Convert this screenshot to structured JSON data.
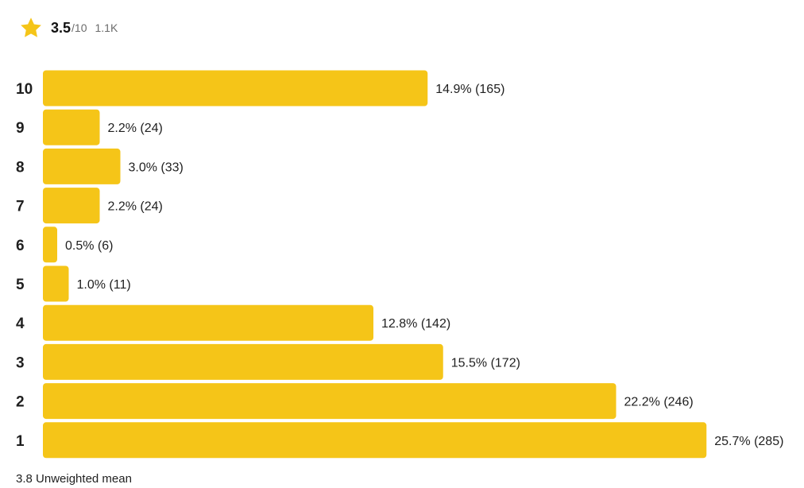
{
  "header": {
    "icon": "star-icon",
    "score": "3.5",
    "outof": "/10",
    "count": "1.1K"
  },
  "colors": {
    "bar": "#f5c518",
    "star": "#f5c518",
    "text": "#1f1f1f"
  },
  "chart_data": {
    "type": "bar",
    "orientation": "horizontal",
    "categories": [
      "10",
      "9",
      "8",
      "7",
      "6",
      "5",
      "4",
      "3",
      "2",
      "1"
    ],
    "values": [
      14.9,
      2.2,
      3.0,
      2.2,
      0.5,
      1.0,
      12.8,
      15.5,
      22.2,
      25.7
    ],
    "counts": [
      165,
      24,
      33,
      24,
      6,
      11,
      142,
      172,
      246,
      285
    ],
    "labels": [
      "14.9% (165)",
      "2.2% (24)",
      "3.0% (33)",
      "2.2% (24)",
      "0.5% (6)",
      "1.0% (11)",
      "12.8% (142)",
      "15.5% (172)",
      "22.2% (246)",
      "25.7% (285)"
    ],
    "unit": "%",
    "grid": false,
    "legend": "none"
  },
  "footer": {
    "mean_value": "3.8",
    "mean_label": "Unweighted mean"
  }
}
